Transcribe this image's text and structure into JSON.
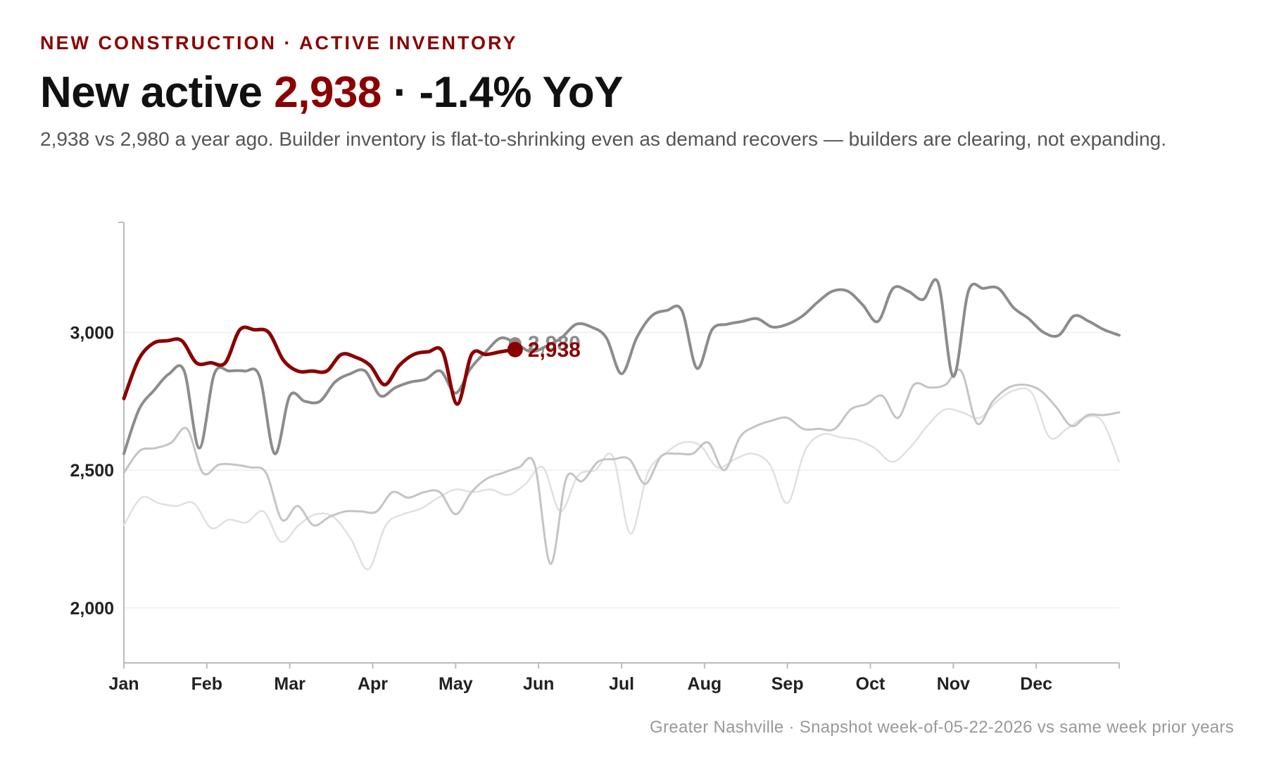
{
  "header": {
    "kicker": "NEW CONSTRUCTION · ACTIVE INVENTORY",
    "headline_prefix": "New active ",
    "headline_value": "2,938",
    "headline_suffix": " · -1.4% YoY",
    "subtitle": "2,938 vs 2,980 a year ago. Builder inventory is flat-to-shrinking even as demand recovers — builders are clearing, not expanding."
  },
  "footer": "Greater Nashville · Snapshot week-of-05-22-2026 vs same week prior years",
  "colors": {
    "current": "#8b0000",
    "prior_1": "#8c8c8c",
    "prior_2": "#c4c4c4",
    "prior_3": "#e0e0e0",
    "grid": "#eeeeee",
    "axis": "#bbbbbb"
  },
  "chart_data": {
    "type": "line",
    "x_unit": "week of year",
    "x_tick_labels": [
      "Jan",
      "Feb",
      "Mar",
      "Apr",
      "May",
      "Jun",
      "Jul",
      "Aug",
      "Sep",
      "Oct",
      "Nov",
      "Dec"
    ],
    "xlim": [
      1,
      53
    ],
    "ylim": [
      1800,
      3400
    ],
    "y_ticks": [
      2000,
      2500,
      3000
    ],
    "y_tick_labels": [
      "2,000",
      "2,500",
      "3,000"
    ],
    "grid": true,
    "legend": "none",
    "series": [
      {
        "key": "prior_3",
        "values": [
          2300,
          2400,
          2380,
          2370,
          2380,
          2290,
          2320,
          2310,
          2350,
          2240,
          2300,
          2340,
          2330,
          2250,
          2140,
          2300,
          2340,
          2360,
          2400,
          2430,
          2420,
          2430,
          2410,
          2450,
          2510,
          2350,
          2480,
          2500,
          2550,
          2270,
          2490,
          2560,
          2600,
          2590,
          2510,
          2540,
          2560,
          2520,
          2380,
          2570,
          2630,
          2620,
          2610,
          2580,
          2530,
          2580,
          2660,
          2720,
          2710,
          2690,
          2750,
          2790,
          2780,
          2620,
          2650,
          2690,
          2680,
          2530
        ]
      },
      {
        "key": "prior_2",
        "values": [
          2490,
          2570,
          2580,
          2600,
          2650,
          2490,
          2520,
          2520,
          2510,
          2490,
          2320,
          2370,
          2300,
          2330,
          2350,
          2350,
          2350,
          2420,
          2400,
          2420,
          2420,
          2340,
          2420,
          2470,
          2490,
          2510,
          2520,
          2160,
          2470,
          2460,
          2530,
          2540,
          2540,
          2450,
          2550,
          2560,
          2560,
          2600,
          2500,
          2620,
          2660,
          2680,
          2690,
          2650,
          2650,
          2650,
          2720,
          2740,
          2770,
          2690,
          2810,
          2800,
          2810,
          2860,
          2670,
          2750,
          2800,
          2810,
          2790,
          2730,
          2660,
          2700,
          2700,
          2710
        ]
      },
      {
        "key": "prior_1",
        "values": [
          2560,
          2720,
          2790,
          2850,
          2860,
          2580,
          2850,
          2860,
          2860,
          2840,
          2560,
          2770,
          2750,
          2750,
          2820,
          2850,
          2860,
          2770,
          2800,
          2820,
          2830,
          2860,
          2780,
          2870,
          2930,
          2980,
          2960,
          2930,
          2950,
          2980,
          3030,
          3020,
          2980,
          2850,
          2980,
          3060,
          3080,
          3080,
          2870,
          3010,
          3030,
          3040,
          3050,
          3020,
          3030,
          3060,
          3110,
          3150,
          3150,
          3100,
          3040,
          3160,
          3150,
          3120,
          3180,
          2840,
          3150,
          3160,
          3160,
          3090,
          3050,
          3000,
          2990,
          3060,
          3040,
          3010,
          2990
        ]
      },
      {
        "key": "current",
        "values": [
          2760,
          2900,
          2960,
          2970,
          2970,
          2890,
          2890,
          2890,
          3010,
          3010,
          3000,
          2900,
          2860,
          2860,
          2860,
          2920,
          2910,
          2880,
          2810,
          2880,
          2920,
          2930,
          2930,
          2740,
          2920,
          2920,
          2930,
          2938
        ]
      }
    ],
    "annotations": [
      {
        "series": "prior_1",
        "label": "2,980"
      },
      {
        "series": "current",
        "label": "2,938"
      }
    ]
  }
}
